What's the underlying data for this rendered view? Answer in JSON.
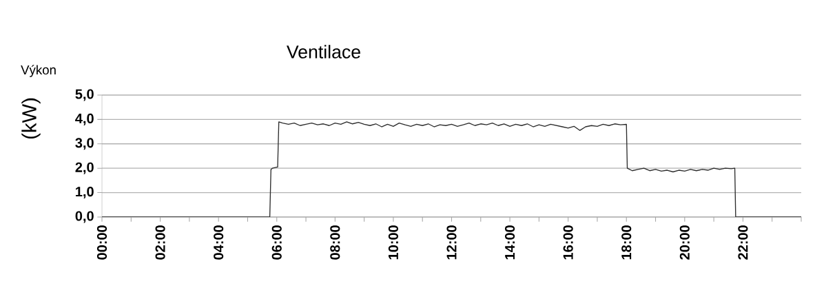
{
  "chart_data": {
    "type": "line",
    "title": "Ventilace",
    "ylabel": "(kW)",
    "annotations": [
      "Výkon"
    ],
    "series": [
      {
        "color": "#2b2b2b",
        "x": [
          0,
          5.76,
          5.8,
          5.85,
          6.03,
          6.07,
          6.2,
          6.4,
          6.6,
          6.8,
          7.0,
          7.2,
          7.4,
          7.6,
          7.8,
          8.0,
          8.2,
          8.4,
          8.6,
          8.8,
          9.0,
          9.2,
          9.4,
          9.6,
          9.8,
          10.0,
          10.2,
          10.4,
          10.6,
          10.8,
          11.0,
          11.2,
          11.4,
          11.6,
          11.8,
          12.0,
          12.2,
          12.4,
          12.6,
          12.8,
          13.0,
          13.2,
          13.4,
          13.6,
          13.8,
          14.0,
          14.2,
          14.4,
          14.6,
          14.8,
          15.0,
          15.2,
          15.4,
          15.6,
          15.8,
          16.0,
          16.2,
          16.4,
          16.6,
          16.8,
          17.0,
          17.2,
          17.4,
          17.6,
          17.8,
          18.0,
          18.03,
          18.2,
          18.4,
          18.6,
          18.8,
          19.0,
          19.2,
          19.4,
          19.6,
          19.8,
          20.0,
          20.2,
          20.4,
          20.6,
          20.8,
          21.0,
          21.2,
          21.4,
          21.6,
          21.72,
          21.75,
          24
        ],
        "values": [
          0,
          0,
          1.95,
          2.0,
          2.05,
          3.9,
          3.85,
          3.8,
          3.85,
          3.75,
          3.8,
          3.85,
          3.78,
          3.82,
          3.75,
          3.85,
          3.8,
          3.9,
          3.82,
          3.88,
          3.8,
          3.75,
          3.82,
          3.7,
          3.8,
          3.72,
          3.85,
          3.78,
          3.72,
          3.8,
          3.75,
          3.82,
          3.7,
          3.78,
          3.75,
          3.8,
          3.72,
          3.78,
          3.85,
          3.75,
          3.82,
          3.78,
          3.85,
          3.75,
          3.82,
          3.72,
          3.8,
          3.75,
          3.82,
          3.7,
          3.78,
          3.72,
          3.8,
          3.75,
          3.7,
          3.65,
          3.72,
          3.55,
          3.7,
          3.75,
          3.72,
          3.8,
          3.75,
          3.82,
          3.78,
          3.8,
          2.0,
          1.9,
          1.95,
          2.0,
          1.9,
          1.95,
          1.88,
          1.92,
          1.85,
          1.92,
          1.88,
          1.95,
          1.9,
          1.95,
          1.92,
          2.0,
          1.95,
          2.0,
          1.98,
          2.0,
          0,
          0
        ]
      }
    ],
    "xlim": [
      0,
      24
    ],
    "xticks": [
      {
        "value": 0,
        "label": "00:00"
      },
      {
        "value": 1,
        "label": null
      },
      {
        "value": 2,
        "label": "02:00"
      },
      {
        "value": 3,
        "label": null
      },
      {
        "value": 4,
        "label": "04:00"
      },
      {
        "value": 5,
        "label": null
      },
      {
        "value": 6,
        "label": "06:00"
      },
      {
        "value": 7,
        "label": null
      },
      {
        "value": 8,
        "label": "08:00"
      },
      {
        "value": 9,
        "label": null
      },
      {
        "value": 10,
        "label": "10:00"
      },
      {
        "value": 11,
        "label": null
      },
      {
        "value": 12,
        "label": "12:00"
      },
      {
        "value": 13,
        "label": null
      },
      {
        "value": 14,
        "label": "14:00"
      },
      {
        "value": 15,
        "label": null
      },
      {
        "value": 16,
        "label": "16:00"
      },
      {
        "value": 17,
        "label": null
      },
      {
        "value": 18,
        "label": "18:00"
      },
      {
        "value": 19,
        "label": null
      },
      {
        "value": 20,
        "label": "20:00"
      },
      {
        "value": 21,
        "label": null
      },
      {
        "value": 22,
        "label": "22:00"
      },
      {
        "value": 23,
        "label": null
      },
      {
        "value": 24,
        "label": null
      }
    ],
    "ylim": [
      0,
      5
    ],
    "yticks": [
      {
        "value": 0,
        "label": "0,0"
      },
      {
        "value": 1,
        "label": "1,0"
      },
      {
        "value": 2,
        "label": "2,0"
      },
      {
        "value": 3,
        "label": "3,0"
      },
      {
        "value": 4,
        "label": "4,0"
      },
      {
        "value": 5,
        "label": "5,0"
      }
    ],
    "grid": "y",
    "marker": "none",
    "line_style": "solid"
  }
}
